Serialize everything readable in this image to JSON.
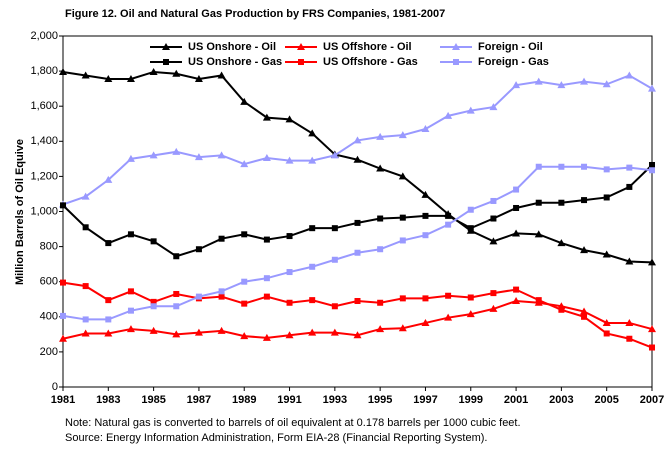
{
  "chart_data": {
    "type": "line",
    "title": "Figure 12.  Oil and Natural Gas Production by FRS Companies, 1981-2007",
    "y_label": "Million Barrels of Oil Equive",
    "notes": [
      "Note:  Natural gas is converted to barrels of oil equivalent at 0.178 barrels per 1000 cubic feet.",
      "Source:  Energy Information Administration, Form EIA-28 (Financial Reporting System)."
    ],
    "x": [
      1981,
      1982,
      1983,
      1984,
      1985,
      1986,
      1987,
      1988,
      1989,
      1990,
      1991,
      1992,
      1993,
      1994,
      1995,
      1996,
      1997,
      1998,
      1999,
      2000,
      2001,
      2002,
      2003,
      2004,
      2005,
      2006,
      2007
    ],
    "xlim": [
      1981,
      2007
    ],
    "xticks": [
      1981,
      1983,
      1985,
      1987,
      1989,
      1991,
      1993,
      1995,
      1997,
      1999,
      2001,
      2003,
      2005,
      2007
    ],
    "ylim": [
      0,
      2000
    ],
    "yticks": [
      0,
      200,
      400,
      600,
      800,
      {
        "value": 1000,
        "label": "1,000"
      },
      {
        "value": 1200,
        "label": "1,200"
      },
      {
        "value": 1400,
        "label": "1,400"
      },
      {
        "value": 1600,
        "label": "1,600"
      },
      {
        "value": 1800,
        "label": "1,800"
      },
      {
        "value": 2000,
        "label": "2,000"
      }
    ],
    "series": [
      {
        "name": "US Onshore - Oil",
        "color": "#000000",
        "marker": "triangle",
        "values": [
          1795,
          1775,
          1755,
          1755,
          1795,
          1785,
          1755,
          1775,
          1625,
          1535,
          1525,
          1445,
          1325,
          1295,
          1245,
          1200,
          1095,
          985,
          890,
          830,
          875,
          870,
          820,
          780,
          755,
          715,
          710
        ]
      },
      {
        "name": "US Offshore - Oil",
        "color": "#ff0000",
        "marker": "triangle",
        "values": [
          275,
          305,
          305,
          330,
          320,
          300,
          310,
          320,
          290,
          280,
          295,
          310,
          310,
          295,
          330,
          335,
          365,
          395,
          415,
          445,
          490,
          480,
          460,
          430,
          365,
          365,
          330
        ]
      },
      {
        "name": "Foreign - Oil",
        "color": "#9999ff",
        "marker": "triangle",
        "values": [
          1040,
          1085,
          1180,
          1300,
          1320,
          1340,
          1310,
          1320,
          1270,
          1305,
          1290,
          1290,
          1320,
          1405,
          1425,
          1435,
          1470,
          1545,
          1575,
          1595,
          1720,
          1740,
          1720,
          1740,
          1725,
          1775,
          1700
        ]
      },
      {
        "name": "US Onshore - Gas",
        "color": "#000000",
        "marker": "square",
        "values": [
          1035,
          910,
          820,
          870,
          830,
          745,
          785,
          845,
          870,
          840,
          860,
          905,
          905,
          935,
          960,
          965,
          975,
          975,
          905,
          960,
          1020,
          1050,
          1050,
          1065,
          1080,
          1140,
          1265
        ]
      },
      {
        "name": "US Offshore - Gas",
        "color": "#ff0000",
        "marker": "square",
        "values": [
          595,
          575,
          495,
          545,
          485,
          530,
          505,
          515,
          475,
          515,
          480,
          495,
          460,
          490,
          480,
          505,
          505,
          520,
          510,
          535,
          555,
          495,
          440,
          400,
          305,
          275,
          225
        ]
      },
      {
        "name": "Foreign - Gas",
        "color": "#9999ff",
        "marker": "square",
        "values": [
          405,
          385,
          385,
          435,
          460,
          460,
          515,
          545,
          600,
          620,
          655,
          685,
          725,
          765,
          785,
          835,
          865,
          925,
          1010,
          1060,
          1125,
          1255,
          1255,
          1255,
          1240,
          1250,
          1235
        ]
      }
    ]
  }
}
